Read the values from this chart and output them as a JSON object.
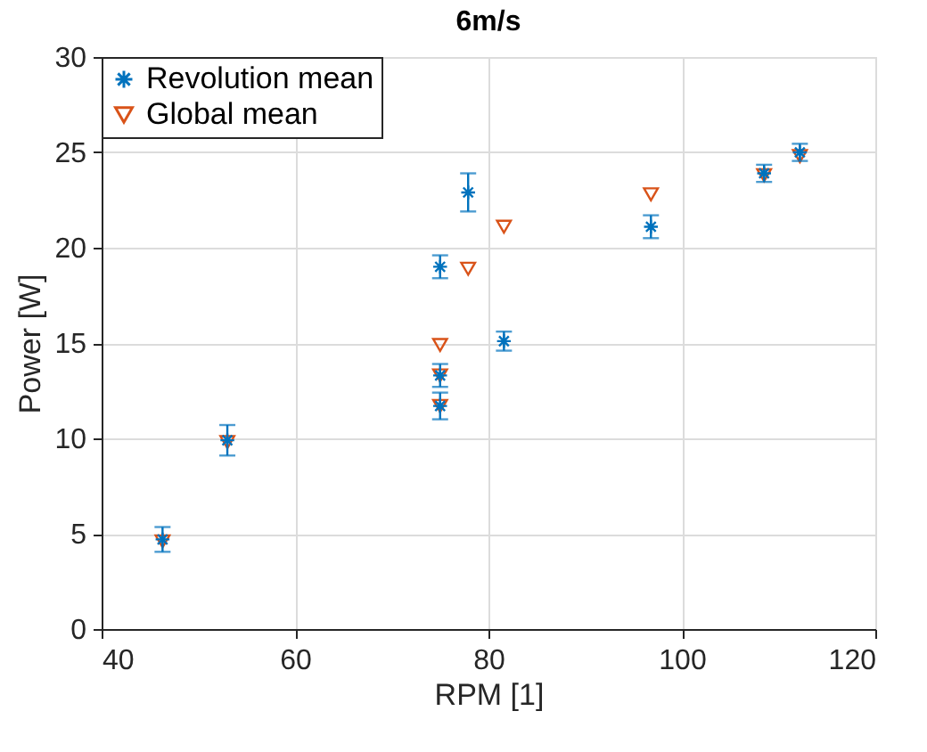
{
  "chart_data": {
    "type": "scatter",
    "title": "6m/s",
    "xlabel": "RPM [1]",
    "ylabel": "Power [W]",
    "xlim": [
      40,
      120
    ],
    "xticks": [
      40,
      60,
      80,
      100,
      120
    ],
    "ylim": [
      0,
      30
    ],
    "yticks": [
      0,
      5,
      10,
      15,
      20,
      25,
      30
    ],
    "grid": true,
    "legend": "top left",
    "series": [
      {
        "name": "Revolution mean",
        "color": "#0072bd",
        "marker": "cross",
        "x": [
          46.3,
          53.0,
          75.0,
          75.0,
          75.0,
          77.9,
          81.6,
          96.8,
          108.5,
          112.2
        ],
        "values": [
          4.7,
          9.9,
          19.0,
          13.3,
          11.7,
          22.9,
          15.1,
          21.1,
          23.9,
          25.0
        ],
        "errors": [
          0.65,
          0.8,
          0.6,
          0.6,
          0.7,
          1.0,
          0.5,
          0.6,
          0.45,
          0.45
        ]
      },
      {
        "name": "Global mean",
        "color": "#d95319",
        "marker": "triangle",
        "x": [
          46.3,
          53.0,
          75.0,
          75.0,
          75.0,
          77.9,
          81.6,
          96.8,
          108.5,
          112.2
        ],
        "values": [
          4.6,
          9.8,
          14.9,
          13.3,
          11.7,
          18.9,
          21.1,
          22.8,
          23.8,
          24.8
        ]
      }
    ]
  }
}
